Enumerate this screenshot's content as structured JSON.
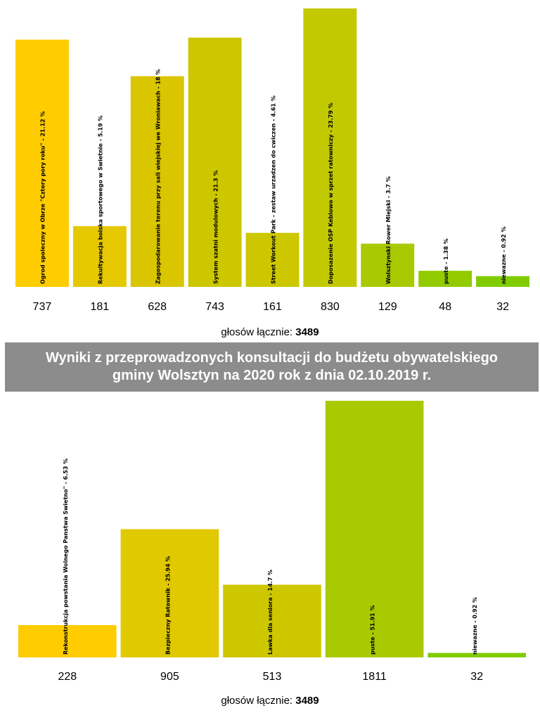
{
  "chart_data": [
    {
      "type": "bar",
      "categories": [
        "Ogrod spoleczny w Obrze \"Cztery pory roku\" - 21.12 %",
        "Rekultywacja boiska sportowego w Swietnie - 5.19 %",
        "Zagospodarowanie terenu przy sali wiejskiej we Wroniawach - 18 %",
        "System szatni modulowych - 21.3 %",
        "Street Workout Park - zestaw urzadzen do cwiczen - 4.61 %",
        "Doposazenie OSP Keblowo w sprzet ratowniczy - 23.79 %",
        "Wolsztynski Rower Miejski - 3.7 %",
        "puste - 1.38 %",
        "niewazne - 0.92 %"
      ],
      "values": [
        737,
        181,
        628,
        743,
        161,
        830,
        129,
        48,
        32
      ],
      "colors": [
        "#ffcc00",
        "#e5c800",
        "#d9c500",
        "#cdc700",
        "#cdc700",
        "#c3c900",
        "#a9c900",
        "#92cb00",
        "#80cc00"
      ],
      "ylim": [
        0,
        830
      ],
      "total_label": "głosów łącznie:",
      "total_value": "3489"
    },
    {
      "type": "bar",
      "categories": [
        "Rekonstrukcja powstania Wolnego Panstwa Swietno\" - 6.53 %",
        "Bezpieczny Ratownik - 25.94 %",
        "Lawka dla seniora - 14.7 %",
        "puste - 51.91 %",
        "niewazne - 0.92 %"
      ],
      "values": [
        228,
        905,
        513,
        1811,
        32
      ],
      "colors": [
        "#ffcc00",
        "#e0c900",
        "#cdc700",
        "#a9c900",
        "#80cc00"
      ],
      "ylim": [
        0,
        1811
      ],
      "total_label": "głosów łącznie:",
      "total_value": "3489"
    }
  ],
  "banner": {
    "line1": "Wyniki z przeprowadzonych konsultacji do budżetu obywatelskiego",
    "line2": "gminy Wolsztyn na 2020 rok z dnia 02.10.2019 r."
  }
}
